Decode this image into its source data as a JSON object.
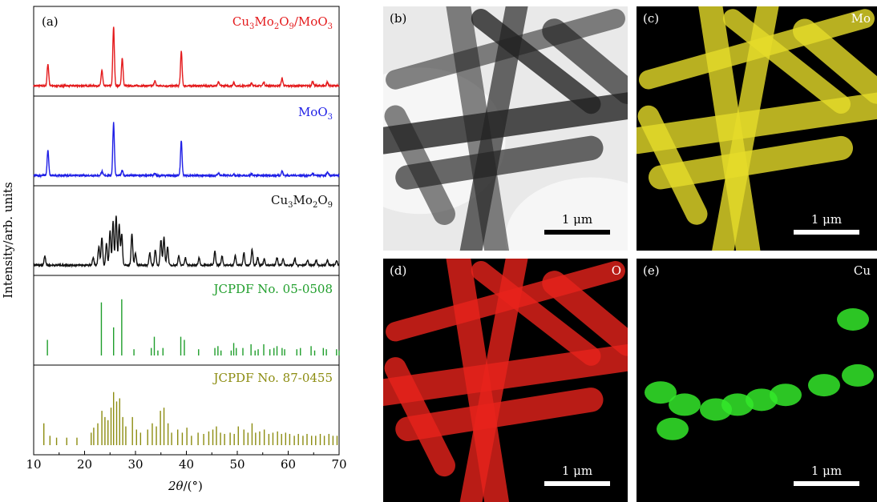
{
  "chart_data": {
    "type": "line",
    "panel_label": "(a)",
    "xlabel": "2θ/(°)",
    "ylabel": "Intensity/arb. units",
    "xlim": [
      10,
      70
    ],
    "x_ticks": [
      10,
      20,
      30,
      40,
      50,
      60,
      70
    ],
    "series": [
      {
        "name": "Cu3Mo2O9/MoO3",
        "color": "#e41a1c",
        "kind": "pattern",
        "peaks": [
          [
            12.8,
            0.35
          ],
          [
            23.4,
            0.25
          ],
          [
            25.7,
            0.95
          ],
          [
            27.4,
            0.45
          ],
          [
            33.8,
            0.08
          ],
          [
            39.0,
            0.55
          ],
          [
            46.3,
            0.06
          ],
          [
            49.3,
            0.05
          ],
          [
            52.8,
            0.05
          ],
          [
            55.2,
            0.06
          ],
          [
            58.8,
            0.12
          ],
          [
            64.8,
            0.07
          ],
          [
            67.7,
            0.06
          ]
        ]
      },
      {
        "name": "MoO3",
        "color": "#1f1fe6",
        "kind": "pattern",
        "peaks": [
          [
            12.8,
            0.4
          ],
          [
            23.4,
            0.07
          ],
          [
            25.7,
            0.85
          ],
          [
            27.4,
            0.08
          ],
          [
            33.8,
            0.03
          ],
          [
            39.0,
            0.55
          ],
          [
            46.3,
            0.04
          ],
          [
            49.3,
            0.02
          ],
          [
            52.8,
            0.03
          ],
          [
            58.8,
            0.07
          ],
          [
            64.8,
            0.03
          ],
          [
            67.7,
            0.05
          ]
        ]
      },
      {
        "name": "Cu3Mo2O9",
        "color": "#111111",
        "kind": "pattern",
        "peaks": [
          [
            12.2,
            0.15
          ],
          [
            21.7,
            0.12
          ],
          [
            22.8,
            0.3
          ],
          [
            23.4,
            0.45
          ],
          [
            24.3,
            0.35
          ],
          [
            25.0,
            0.55
          ],
          [
            25.6,
            0.7
          ],
          [
            26.2,
            0.8
          ],
          [
            26.8,
            0.65
          ],
          [
            27.3,
            0.5
          ],
          [
            29.3,
            0.5
          ],
          [
            30.0,
            0.2
          ],
          [
            32.8,
            0.2
          ],
          [
            33.9,
            0.25
          ],
          [
            35.0,
            0.4
          ],
          [
            35.6,
            0.45
          ],
          [
            36.3,
            0.3
          ],
          [
            38.5,
            0.15
          ],
          [
            39.8,
            0.12
          ],
          [
            42.5,
            0.12
          ],
          [
            45.6,
            0.22
          ],
          [
            47.0,
            0.15
          ],
          [
            49.6,
            0.15
          ],
          [
            51.3,
            0.2
          ],
          [
            52.9,
            0.25
          ],
          [
            54.0,
            0.12
          ],
          [
            55.3,
            0.1
          ],
          [
            57.8,
            0.12
          ],
          [
            59.0,
            0.1
          ],
          [
            61.3,
            0.1
          ],
          [
            63.8,
            0.08
          ],
          [
            65.5,
            0.08
          ],
          [
            67.7,
            0.08
          ],
          [
            69.5,
            0.07
          ]
        ]
      },
      {
        "name": "JCPDF No. 05-0508",
        "color": "#1f9e2b",
        "kind": "sticks",
        "peaks": [
          [
            12.7,
            0.25
          ],
          [
            23.3,
            0.85
          ],
          [
            25.7,
            0.45
          ],
          [
            27.3,
            0.9
          ],
          [
            29.7,
            0.1
          ],
          [
            33.1,
            0.12
          ],
          [
            33.7,
            0.3
          ],
          [
            34.4,
            0.08
          ],
          [
            35.4,
            0.12
          ],
          [
            38.9,
            0.3
          ],
          [
            39.6,
            0.25
          ],
          [
            42.4,
            0.1
          ],
          [
            45.6,
            0.12
          ],
          [
            46.2,
            0.15
          ],
          [
            46.8,
            0.08
          ],
          [
            48.8,
            0.08
          ],
          [
            49.3,
            0.2
          ],
          [
            49.8,
            0.12
          ],
          [
            51.1,
            0.12
          ],
          [
            52.7,
            0.18
          ],
          [
            53.5,
            0.08
          ],
          [
            54.1,
            0.1
          ],
          [
            55.2,
            0.18
          ],
          [
            56.4,
            0.1
          ],
          [
            57.2,
            0.12
          ],
          [
            57.8,
            0.15
          ],
          [
            58.8,
            0.12
          ],
          [
            59.3,
            0.1
          ],
          [
            61.7,
            0.1
          ],
          [
            62.4,
            0.12
          ],
          [
            64.5,
            0.15
          ],
          [
            65.2,
            0.08
          ],
          [
            66.9,
            0.12
          ],
          [
            67.5,
            0.1
          ],
          [
            69.5,
            0.1
          ],
          [
            70.0,
            0.08
          ]
        ]
      },
      {
        "name": "JCPDF No. 87-0455",
        "color": "#8c8c10",
        "kind": "sticks",
        "peaks": [
          [
            12.0,
            0.35
          ],
          [
            13.2,
            0.15
          ],
          [
            14.5,
            0.12
          ],
          [
            16.5,
            0.12
          ],
          [
            18.5,
            0.12
          ],
          [
            21.3,
            0.2
          ],
          [
            21.8,
            0.28
          ],
          [
            22.6,
            0.35
          ],
          [
            23.4,
            0.55
          ],
          [
            24.0,
            0.45
          ],
          [
            24.6,
            0.4
          ],
          [
            25.2,
            0.6
          ],
          [
            25.7,
            0.85
          ],
          [
            26.3,
            0.7
          ],
          [
            26.9,
            0.75
          ],
          [
            27.5,
            0.45
          ],
          [
            28.1,
            0.3
          ],
          [
            29.4,
            0.45
          ],
          [
            30.2,
            0.25
          ],
          [
            31.0,
            0.2
          ],
          [
            32.4,
            0.25
          ],
          [
            33.3,
            0.35
          ],
          [
            34.1,
            0.3
          ],
          [
            34.9,
            0.55
          ],
          [
            35.6,
            0.6
          ],
          [
            36.4,
            0.35
          ],
          [
            37.1,
            0.2
          ],
          [
            38.3,
            0.25
          ],
          [
            39.2,
            0.2
          ],
          [
            40.1,
            0.28
          ],
          [
            41.0,
            0.15
          ],
          [
            42.3,
            0.2
          ],
          [
            43.4,
            0.18
          ],
          [
            44.4,
            0.22
          ],
          [
            45.2,
            0.25
          ],
          [
            45.9,
            0.3
          ],
          [
            46.7,
            0.2
          ],
          [
            47.5,
            0.18
          ],
          [
            48.6,
            0.2
          ],
          [
            49.4,
            0.18
          ],
          [
            50.2,
            0.3
          ],
          [
            51.3,
            0.25
          ],
          [
            52.1,
            0.2
          ],
          [
            52.9,
            0.35
          ],
          [
            53.6,
            0.2
          ],
          [
            54.4,
            0.22
          ],
          [
            55.3,
            0.25
          ],
          [
            56.2,
            0.18
          ],
          [
            57.0,
            0.2
          ],
          [
            57.9,
            0.22
          ],
          [
            58.7,
            0.18
          ],
          [
            59.5,
            0.2
          ],
          [
            60.3,
            0.18
          ],
          [
            61.2,
            0.15
          ],
          [
            62.0,
            0.18
          ],
          [
            62.9,
            0.15
          ],
          [
            63.7,
            0.18
          ],
          [
            64.6,
            0.15
          ],
          [
            65.4,
            0.15
          ],
          [
            66.3,
            0.18
          ],
          [
            67.1,
            0.15
          ],
          [
            68.0,
            0.18
          ],
          [
            68.8,
            0.15
          ],
          [
            69.6,
            0.15
          ]
        ]
      }
    ]
  },
  "labels": {
    "s0_pre": "Cu",
    "s0_sub1": "3",
    "s0_mid1": "Mo",
    "s0_sub2": "2",
    "s0_mid2": "O",
    "s0_sub3": "9",
    "s0_post": "/MoO",
    "s0_sub4": "3",
    "s1_pre": "MoO",
    "s1_sub": "3",
    "s2_pre": "Cu",
    "s2_sub1": "3",
    "s2_mid1": "Mo",
    "s2_sub2": "2",
    "s2_mid2": "O",
    "s2_sub3": "9",
    "s3": "JCPDF No. 05-0508",
    "s4": "JCPDF No. 87-0455",
    "xlabel_theta": "2θ",
    "xlabel_unit": "/(°)"
  },
  "panels": [
    {
      "label": "(b)",
      "element": "",
      "scale": "1 μm",
      "bg": "#e9e9e9",
      "color": "#222222",
      "bar_color": "#000000",
      "text_color": "#000000",
      "label_color": "#000000"
    },
    {
      "label": "(c)",
      "element": "Mo",
      "scale": "1 μm",
      "bg": "#000000",
      "color": "#e6dc2a",
      "bar_color": "#ffffff",
      "text_color": "#ffffff",
      "label_color": "#ffffff"
    },
    {
      "label": "(d)",
      "element": "O",
      "scale": "1 μm",
      "bg": "#000000",
      "color": "#e8231c",
      "bar_color": "#ffffff",
      "text_color": "#ffffff",
      "label_color": "#ffffff"
    },
    {
      "label": "(e)",
      "element": "Cu",
      "scale": "1 μm",
      "bg": "#000000",
      "color": "#34e82a",
      "bar_color": "#ffffff",
      "text_color": "#ffffff",
      "label_color": "#ffffff"
    }
  ]
}
